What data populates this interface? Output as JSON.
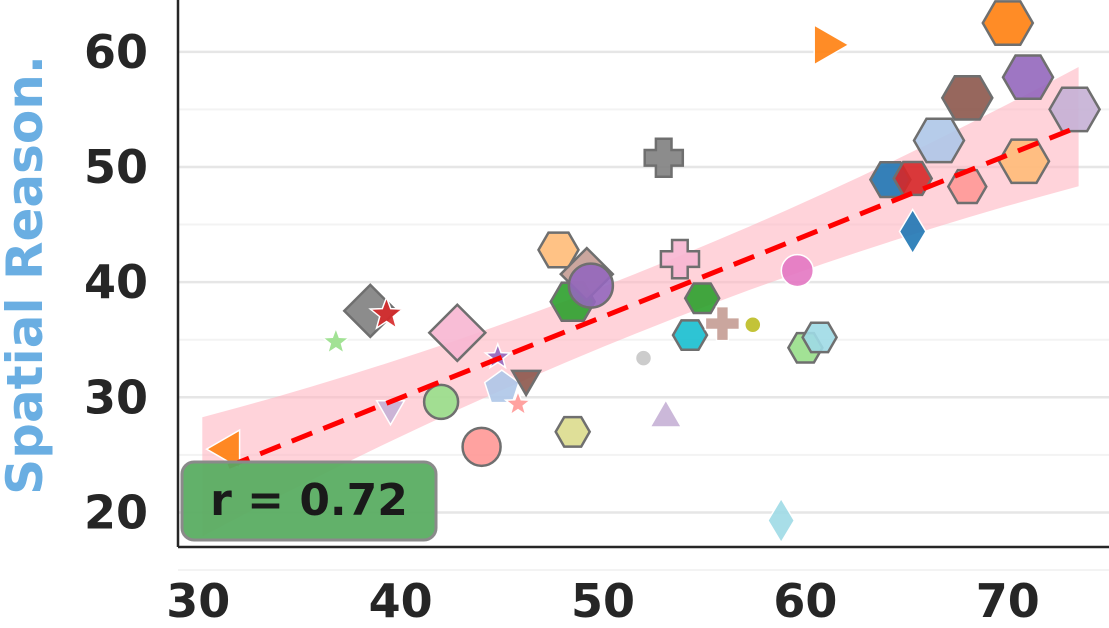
{
  "chart_data": {
    "type": "scatter",
    "title": "",
    "xlabel": "",
    "ylabel": "Spatial Reason.",
    "xlim": [
      29,
      75
    ],
    "ylim": [
      17,
      64.5
    ],
    "x_ticks": [
      "30",
      "40",
      "50",
      "60",
      "70"
    ],
    "y_ticks": [
      "20",
      "30",
      "40",
      "50",
      "60"
    ],
    "grid": "horizontal",
    "annotation": "r = 0.72",
    "trend": {
      "x0": 31.5,
      "y0": 24.0,
      "x1": 73.5,
      "y1": 53.5
    },
    "colors": {
      "ylabel": "#6aaee2",
      "trend": "#ff0000",
      "band": "#ffb6c1",
      "annotation_box": "#5aad62",
      "grid": "#e6e6e6"
    },
    "points": [
      {
        "x": 31.5,
        "y": 25.5,
        "marker": "triangle-left",
        "color": "#ff7f0e",
        "size": 22,
        "edge": false
      },
      {
        "x": 36.8,
        "y": 34.8,
        "marker": "star",
        "color": "#98df8a",
        "size": 14,
        "edge": false
      },
      {
        "x": 38.5,
        "y": 37.5,
        "marker": "diamond",
        "color": "#7f7f7f",
        "size": 26,
        "edge": true
      },
      {
        "x": 39.3,
        "y": 37.2,
        "marker": "star",
        "color": "#d62728",
        "size": 17,
        "edge": false
      },
      {
        "x": 39.5,
        "y": 29.0,
        "marker": "triangle-down",
        "color": "#c5b0d5",
        "size": 16,
        "edge": false
      },
      {
        "x": 42.0,
        "y": 29.6,
        "marker": "circle",
        "color": "#98df8a",
        "size": 17,
        "edge": true
      },
      {
        "x": 42.8,
        "y": 35.6,
        "marker": "diamond",
        "color": "#f7b6d2",
        "size": 28,
        "edge": true
      },
      {
        "x": 44.0,
        "y": 25.7,
        "marker": "circle",
        "color": "#ff9896",
        "size": 19,
        "edge": true
      },
      {
        "x": 44.8,
        "y": 33.5,
        "marker": "star",
        "color": "#9467bd",
        "size": 13,
        "edge": false
      },
      {
        "x": 45.0,
        "y": 30.8,
        "marker": "pentagon",
        "color": "#aec7e8",
        "size": 18,
        "edge": false
      },
      {
        "x": 45.8,
        "y": 29.4,
        "marker": "star",
        "color": "#ff9896",
        "size": 13,
        "edge": false
      },
      {
        "x": 46.2,
        "y": 31.6,
        "marker": "triangle-down",
        "color": "#8c564b",
        "size": 16,
        "edge": true
      },
      {
        "x": 47.8,
        "y": 42.8,
        "marker": "hexagon",
        "color": "#ffbb78",
        "size": 20,
        "edge": true
      },
      {
        "x": 48.5,
        "y": 38.3,
        "marker": "hexagon",
        "color": "#2ca02c",
        "size": 22,
        "edge": true
      },
      {
        "x": 48.5,
        "y": 27.0,
        "marker": "hexagon",
        "color": "#dbdb8d",
        "size": 17,
        "edge": true
      },
      {
        "x": 49.2,
        "y": 40.7,
        "marker": "diamond",
        "color": "#c49c94",
        "size": 26,
        "edge": true
      },
      {
        "x": 49.4,
        "y": 39.7,
        "marker": "circle",
        "color": "#9467bd",
        "size": 22,
        "edge": true
      },
      {
        "x": 52.0,
        "y": 33.4,
        "marker": "circle",
        "color": "#c7c7c7",
        "size": 8,
        "edge": false
      },
      {
        "x": 53.0,
        "y": 50.8,
        "marker": "x",
        "color": "#7f7f7f",
        "size": 19,
        "edge": true
      },
      {
        "x": 53.1,
        "y": 28.2,
        "marker": "triangle-up",
        "color": "#c5b0d5",
        "size": 18,
        "edge": false
      },
      {
        "x": 53.8,
        "y": 42.0,
        "marker": "x",
        "color": "#f7b6d2",
        "size": 19,
        "edge": true
      },
      {
        "x": 54.3,
        "y": 35.4,
        "marker": "hexagon",
        "color": "#17becf",
        "size": 17,
        "edge": true
      },
      {
        "x": 54.9,
        "y": 38.6,
        "marker": "hexagon",
        "color": "#2ca02c",
        "size": 17,
        "edge": true
      },
      {
        "x": 55.9,
        "y": 36.4,
        "marker": "plus",
        "color": "#c49c94",
        "size": 17,
        "edge": false
      },
      {
        "x": 57.4,
        "y": 36.3,
        "marker": "circle",
        "color": "#bcbd22",
        "size": 8,
        "edge": false
      },
      {
        "x": 58.8,
        "y": 19.3,
        "marker": "thin-diamond",
        "color": "#9edae5",
        "size": 22,
        "edge": false
      },
      {
        "x": 59.6,
        "y": 41.0,
        "marker": "circle",
        "color": "#e377c2",
        "size": 16,
        "edge": false
      },
      {
        "x": 60.0,
        "y": 34.3,
        "marker": "hexagon",
        "color": "#98df8a",
        "size": 17,
        "edge": true
      },
      {
        "x": 60.7,
        "y": 35.2,
        "marker": "hexagon",
        "color": "#9edae5",
        "size": 17,
        "edge": true
      },
      {
        "x": 61.0,
        "y": 60.6,
        "marker": "triangle-right",
        "color": "#ff7f0e",
        "size": 23,
        "edge": false
      },
      {
        "x": 64.2,
        "y": 48.9,
        "marker": "hexagon",
        "color": "#1f77b4",
        "size": 20,
        "edge": true
      },
      {
        "x": 65.3,
        "y": 44.4,
        "marker": "thin-diamond",
        "color": "#1f77b4",
        "size": 22,
        "edge": false
      },
      {
        "x": 65.3,
        "y": 49.0,
        "marker": "hexagon",
        "color": "#d62728",
        "size": 19,
        "edge": true
      },
      {
        "x": 66.6,
        "y": 52.3,
        "marker": "hexagon",
        "color": "#aec7e8",
        "size": 25,
        "edge": true
      },
      {
        "x": 68.0,
        "y": 48.3,
        "marker": "hexagon",
        "color": "#ff9896",
        "size": 19,
        "edge": true
      },
      {
        "x": 68.0,
        "y": 56.0,
        "marker": "hexagon",
        "color": "#8c564b",
        "size": 25,
        "edge": true
      },
      {
        "x": 70.0,
        "y": 62.5,
        "marker": "hexagon",
        "color": "#ff7f0e",
        "size": 25,
        "edge": true
      },
      {
        "x": 70.8,
        "y": 50.5,
        "marker": "hexagon",
        "color": "#ffbb78",
        "size": 25,
        "edge": true
      },
      {
        "x": 71.0,
        "y": 57.8,
        "marker": "hexagon",
        "color": "#9467bd",
        "size": 25,
        "edge": true
      },
      {
        "x": 73.3,
        "y": 55.0,
        "marker": "hexagon",
        "color": "#c5b0d5",
        "size": 25,
        "edge": true
      }
    ]
  }
}
